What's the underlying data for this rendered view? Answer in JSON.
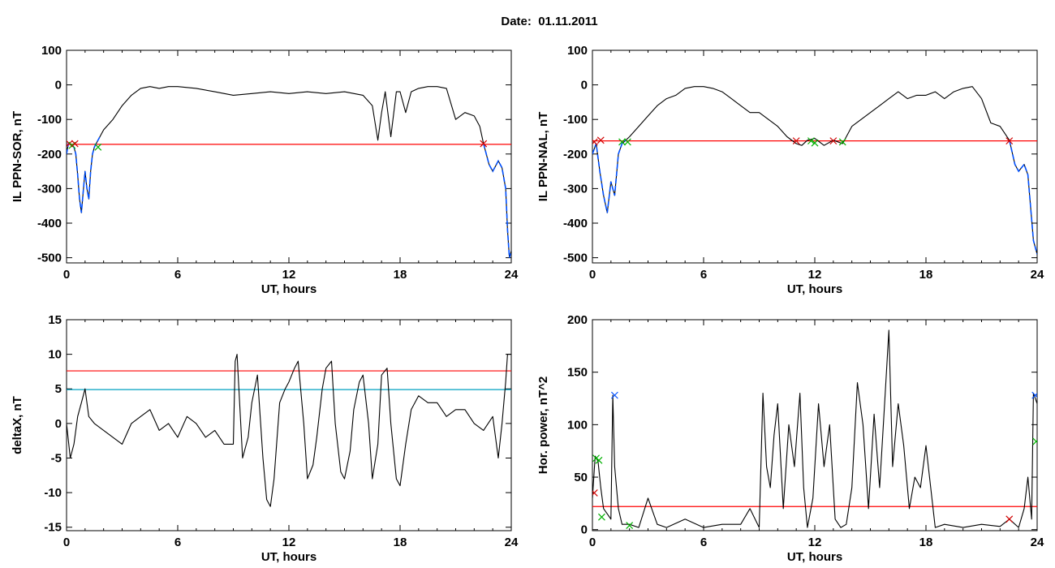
{
  "figure_title": "Date:  01.11.2011",
  "colors": {
    "axes": "#000000",
    "trace": "#000000",
    "threshold_red": "#ff0000",
    "threshold_teal": "#00a0c0",
    "segment_blue": "#0050ff",
    "marker_red": "#d00000",
    "marker_green": "#00b000",
    "marker_blue": "#0050ff"
  },
  "chart_data": [
    {
      "id": "tl",
      "type": "line",
      "xlabel": "UT, hours",
      "ylabel": "IL PPN-SOR, nT",
      "xlim": [
        0,
        24
      ],
      "ylim": [
        -515,
        100
      ],
      "xticks": [
        0,
        6,
        12,
        18,
        24
      ],
      "yticks": [
        -500,
        -400,
        -300,
        -200,
        -100,
        0,
        100
      ],
      "x": [
        0,
        0.1,
        0.2,
        0.3,
        0.4,
        0.5,
        0.6,
        0.7,
        0.8,
        0.9,
        1.0,
        1.1,
        1.2,
        1.3,
        1.4,
        1.5,
        1.6,
        1.8,
        2.0,
        2.5,
        3.0,
        3.5,
        4.0,
        4.5,
        5.0,
        5.5,
        6.0,
        7.0,
        8.0,
        9.0,
        10.0,
        11.0,
        12.0,
        13.0,
        14.0,
        15.0,
        16.0,
        16.5,
        16.8,
        17.0,
        17.2,
        17.5,
        17.8,
        18.0,
        18.3,
        18.6,
        19.0,
        19.5,
        20.0,
        20.5,
        21.0,
        21.5,
        22.0,
        22.3,
        22.5,
        22.8,
        23.0,
        23.3,
        23.5,
        23.7,
        23.8,
        23.9,
        24.0
      ],
      "values": [
        -200,
        -170,
        -170,
        -175,
        -180,
        -200,
        -260,
        -330,
        -370,
        -310,
        -250,
        -300,
        -330,
        -250,
        -200,
        -180,
        -170,
        -150,
        -130,
        -100,
        -60,
        -30,
        -10,
        -5,
        -10,
        -5,
        -5,
        -10,
        -20,
        -30,
        -25,
        -20,
        -25,
        -20,
        -25,
        -20,
        -30,
        -60,
        -160,
        -80,
        -20,
        -150,
        -20,
        -20,
        -80,
        -20,
        -10,
        -5,
        -5,
        -10,
        -100,
        -80,
        -90,
        -120,
        -170,
        -230,
        -250,
        -220,
        -240,
        -300,
        -420,
        -500,
        -480
      ],
      "thresholds": [
        {
          "value": -172,
          "color": "#ff0000"
        }
      ],
      "blue_segments": [
        [
          0,
          1.8
        ],
        [
          22.5,
          24
        ]
      ],
      "markers": [
        {
          "x": 0.15,
          "y": -170,
          "symbol": "x",
          "color": "#d00000"
        },
        {
          "x": 0.3,
          "y": -175,
          "symbol": "x",
          "color": "#00b000"
        },
        {
          "x": 0.45,
          "y": -170,
          "symbol": "x",
          "color": "#d00000"
        },
        {
          "x": 1.7,
          "y": -180,
          "symbol": "x",
          "color": "#00b000"
        },
        {
          "x": 22.5,
          "y": -170,
          "symbol": "x",
          "color": "#d00000"
        }
      ]
    },
    {
      "id": "tr",
      "type": "line",
      "xlabel": "UT, hours",
      "ylabel": "IL PPN-NAL, nT",
      "xlim": [
        0,
        24
      ],
      "ylim": [
        -515,
        100
      ],
      "xticks": [
        0,
        6,
        12,
        18,
        24
      ],
      "yticks": [
        -500,
        -400,
        -300,
        -200,
        -100,
        0,
        100
      ],
      "x": [
        0,
        0.2,
        0.4,
        0.6,
        0.8,
        1.0,
        1.2,
        1.4,
        1.6,
        1.8,
        2.0,
        2.5,
        3.0,
        3.5,
        4.0,
        4.5,
        5.0,
        5.5,
        6.0,
        6.5,
        7.0,
        7.5,
        8.0,
        8.5,
        9.0,
        9.5,
        10.0,
        10.5,
        11.0,
        11.3,
        11.6,
        12.0,
        12.5,
        13.0,
        13.5,
        14.0,
        14.5,
        15.0,
        15.5,
        16.0,
        16.5,
        17.0,
        17.5,
        18.0,
        18.5,
        19.0,
        19.5,
        20.0,
        20.5,
        21.0,
        21.5,
        22.0,
        22.5,
        22.8,
        23.0,
        23.3,
        23.5,
        23.8,
        24.0
      ],
      "values": [
        -200,
        -170,
        -250,
        -320,
        -370,
        -280,
        -320,
        -200,
        -170,
        -160,
        -150,
        -120,
        -90,
        -60,
        -40,
        -30,
        -10,
        -5,
        -5,
        -10,
        -20,
        -40,
        -60,
        -80,
        -80,
        -100,
        -120,
        -150,
        -170,
        -175,
        -160,
        -155,
        -175,
        -160,
        -170,
        -120,
        -100,
        -80,
        -60,
        -40,
        -20,
        -40,
        -30,
        -30,
        -20,
        -40,
        -20,
        -10,
        -5,
        -40,
        -110,
        -120,
        -160,
        -230,
        -250,
        -230,
        -260,
        -450,
        -490
      ],
      "thresholds": [
        {
          "value": -162,
          "color": "#ff0000"
        }
      ],
      "blue_segments": [
        [
          0,
          1.8
        ],
        [
          22.5,
          24
        ]
      ],
      "markers": [
        {
          "x": 0.1,
          "y": -165,
          "symbol": "x",
          "color": "#d00000"
        },
        {
          "x": 0.45,
          "y": -160,
          "symbol": "x",
          "color": "#d00000"
        },
        {
          "x": 1.6,
          "y": -165,
          "symbol": "x",
          "color": "#00b000"
        },
        {
          "x": 1.9,
          "y": -165,
          "symbol": "x",
          "color": "#00b000"
        },
        {
          "x": 11.0,
          "y": -162,
          "symbol": "x",
          "color": "#d00000"
        },
        {
          "x": 11.8,
          "y": -162,
          "symbol": "x",
          "color": "#00b000"
        },
        {
          "x": 12.0,
          "y": -168,
          "symbol": "x",
          "color": "#00b000"
        },
        {
          "x": 13.0,
          "y": -162,
          "symbol": "x",
          "color": "#d00000"
        },
        {
          "x": 13.5,
          "y": -165,
          "symbol": "x",
          "color": "#00b000"
        },
        {
          "x": 22.5,
          "y": -162,
          "symbol": "x",
          "color": "#d00000"
        }
      ]
    },
    {
      "id": "bl",
      "type": "line",
      "xlabel": "UT, hours",
      "ylabel": "deltaX, nT",
      "xlim": [
        0,
        24
      ],
      "ylim": [
        -15.5,
        15
      ],
      "xticks": [
        0,
        6,
        12,
        18,
        24
      ],
      "yticks": [
        -15,
        -10,
        -5,
        0,
        5,
        10,
        15
      ],
      "x": [
        0,
        0.2,
        0.4,
        0.6,
        0.8,
        1.0,
        1.2,
        1.5,
        2.0,
        2.5,
        3.0,
        3.5,
        4.0,
        4.5,
        5.0,
        5.5,
        6.0,
        6.5,
        7.0,
        7.5,
        8.0,
        8.5,
        9.0,
        9.1,
        9.2,
        9.5,
        9.8,
        10.0,
        10.3,
        10.6,
        10.8,
        11.0,
        11.2,
        11.5,
        11.8,
        12.0,
        12.3,
        12.5,
        12.8,
        13.0,
        13.3,
        13.5,
        13.8,
        14.0,
        14.3,
        14.5,
        14.8,
        15.0,
        15.3,
        15.5,
        15.8,
        16.0,
        16.3,
        16.5,
        16.8,
        17.0,
        17.3,
        17.5,
        17.8,
        18.0,
        18.3,
        18.6,
        19.0,
        19.5,
        20.0,
        20.5,
        21.0,
        21.5,
        22.0,
        22.5,
        23.0,
        23.3,
        23.5,
        23.7,
        23.8,
        24.0
      ],
      "values": [
        0,
        -5,
        -3,
        1,
        3,
        5,
        1,
        0,
        -1,
        -2,
        -3,
        0,
        1,
        2,
        -1,
        0,
        -2,
        1,
        0,
        -2,
        -1,
        -3,
        -3,
        9,
        10,
        -5,
        -2,
        3,
        7,
        -5,
        -11,
        -12,
        -8,
        3,
        5,
        6,
        8,
        9,
        0,
        -8,
        -6,
        -2,
        5,
        8,
        9,
        0,
        -7,
        -8,
        -4,
        2,
        6,
        7,
        0,
        -8,
        -3,
        7,
        8,
        0,
        -8,
        -9,
        -3,
        2,
        4,
        3,
        3,
        1,
        2,
        2,
        0,
        -1,
        1,
        -5,
        0,
        6,
        10,
        10
      ],
      "thresholds": [
        {
          "value": 7.6,
          "color": "#ff0000"
        },
        {
          "value": 4.9,
          "color": "#00a0c0"
        }
      ],
      "blue_segments": [],
      "markers": []
    },
    {
      "id": "br",
      "type": "line",
      "xlabel": "UT, hours",
      "ylabel": "Hor. power, nT^2",
      "xlim": [
        0,
        24
      ],
      "ylim": [
        -1,
        200
      ],
      "xticks": [
        0,
        6,
        12,
        18,
        24
      ],
      "yticks": [
        0,
        50,
        100,
        150,
        200
      ],
      "x": [
        0,
        0.15,
        0.3,
        0.45,
        0.6,
        0.8,
        1.0,
        1.1,
        1.2,
        1.4,
        1.6,
        2.0,
        2.5,
        3.0,
        3.5,
        4.0,
        5.0,
        6.0,
        7.0,
        8.0,
        8.5,
        9.0,
        9.2,
        9.4,
        9.6,
        9.8,
        10.0,
        10.3,
        10.6,
        10.9,
        11.2,
        11.4,
        11.6,
        11.9,
        12.2,
        12.5,
        12.8,
        13.1,
        13.4,
        13.7,
        14.0,
        14.3,
        14.6,
        14.9,
        15.2,
        15.5,
        15.8,
        16.0,
        16.2,
        16.5,
        16.8,
        17.1,
        17.4,
        17.7,
        18.0,
        18.5,
        19.0,
        20.0,
        21.0,
        22.0,
        22.5,
        23.0,
        23.3,
        23.5,
        23.7,
        23.8,
        24.0
      ],
      "values": [
        30,
        70,
        65,
        40,
        20,
        15,
        10,
        128,
        60,
        20,
        5,
        5,
        2,
        30,
        5,
        2,
        10,
        2,
        5,
        5,
        20,
        2,
        130,
        60,
        40,
        90,
        120,
        20,
        100,
        60,
        130,
        40,
        2,
        30,
        120,
        60,
        100,
        10,
        2,
        5,
        40,
        140,
        100,
        20,
        110,
        40,
        130,
        190,
        60,
        120,
        80,
        20,
        50,
        40,
        80,
        2,
        5,
        2,
        5,
        3,
        10,
        2,
        20,
        50,
        10,
        130,
        120
      ],
      "thresholds": [
        {
          "value": 22,
          "color": "#ff0000"
        }
      ],
      "blue_segments": [],
      "markers": [
        {
          "x": 0.1,
          "y": 35,
          "symbol": "x",
          "color": "#d00000"
        },
        {
          "x": 0.2,
          "y": 68,
          "symbol": "x",
          "color": "#00b000"
        },
        {
          "x": 0.35,
          "y": 66,
          "symbol": "x",
          "color": "#00b000"
        },
        {
          "x": 0.5,
          "y": 12,
          "symbol": "x",
          "color": "#00b000"
        },
        {
          "x": 1.2,
          "y": 128,
          "symbol": "x",
          "color": "#0050ff"
        },
        {
          "x": 2.0,
          "y": 4,
          "symbol": "x",
          "color": "#00b000"
        },
        {
          "x": 22.5,
          "y": 10,
          "symbol": "x",
          "color": "#d00000"
        },
        {
          "x": 23.9,
          "y": 128,
          "symbol": "x",
          "color": "#0050ff"
        },
        {
          "x": 23.95,
          "y": 84,
          "symbol": "x",
          "color": "#00b000"
        }
      ]
    }
  ]
}
